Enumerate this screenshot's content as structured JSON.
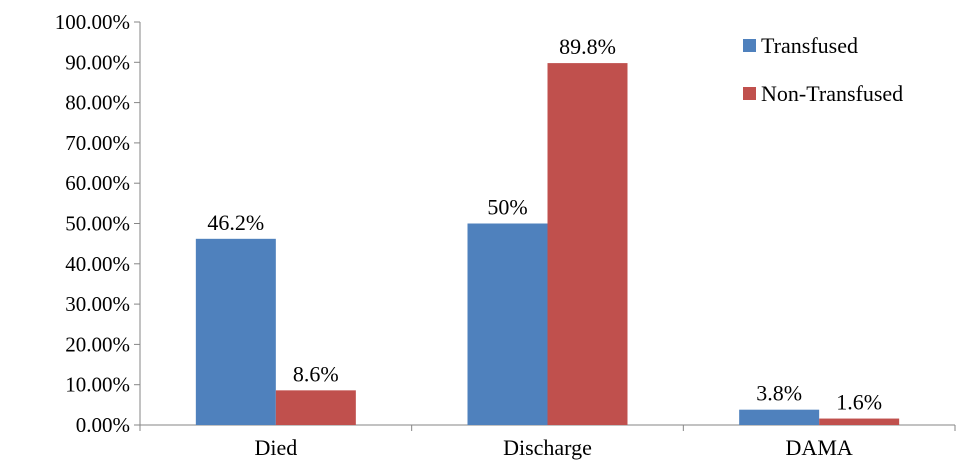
{
  "chart_data": {
    "type": "bar",
    "categories": [
      "Died",
      "Discharge",
      "DAMA"
    ],
    "series": [
      {
        "name": "Transfused",
        "values": [
          46.2,
          50,
          3.8
        ],
        "labels": [
          "46.2%",
          "50%",
          "3.8%"
        ],
        "color": "#4F81BD"
      },
      {
        "name": "Non-Transfused",
        "values": [
          8.6,
          89.8,
          1.6
        ],
        "labels": [
          "8.6%",
          "89.8%",
          "1.6%"
        ],
        "color": "#C0504D"
      }
    ],
    "y_ticks": [
      "0.00%",
      "10.00%",
      "20.00%",
      "30.00%",
      "40.00%",
      "50.00%",
      "60.00%",
      "70.00%",
      "80.00%",
      "90.00%",
      "100.00%"
    ],
    "ylim": [
      0,
      100
    ],
    "grid": false,
    "legend_position": "top-right",
    "title": "",
    "xlabel": "",
    "ylabel": ""
  }
}
